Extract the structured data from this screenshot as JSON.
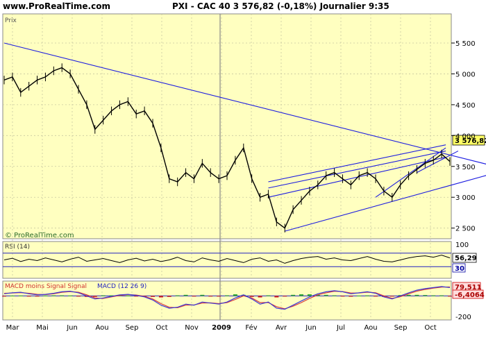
{
  "header": {
    "site": "www.ProRealTime.com",
    "title": "PXI - CAC 40    3 576,82 (-0,18%)    Journalier  9:35"
  },
  "main_panel": {
    "label": "Prix",
    "watermark": "© ProRealTime.com",
    "last_price_tag": "3 576,82"
  },
  "rsi_panel": {
    "label": "RSI (14)",
    "value_tag": "56,29",
    "level_tag": "30"
  },
  "macd_panel": {
    "label_part1": "MACD moins Signal Signal",
    "label_part2": "MACD (12 26 9)",
    "value_tag_1": "79,511",
    "value_tag_2": "-6,4064"
  },
  "colors": {
    "panel_bg": "#ffffc0",
    "price": "#000000",
    "trendline": "#1c1ce0",
    "rsi_line": "#000000",
    "macd_line": "#3a3ad8",
    "signal_line": "#d83a3a",
    "hist_pos": "#2eaa2e",
    "hist_neg": "#d02020",
    "price_tag_bg": "#ffff66",
    "rsi_tag_bg": "#ffffff",
    "macd_tag_bg": "#ffdddd"
  },
  "chart_data": [
    {
      "type": "line",
      "panel": "price",
      "x_tick_labels": [
        "Mar",
        "Mai",
        "Jun",
        "Aou",
        "Sep",
        "Oct",
        "Nov",
        "2009",
        "Fév",
        "Avr",
        "Jun",
        "Jul",
        "Aou",
        "Sep",
        "Oct"
      ],
      "y_ticks": [
        {
          "value": 2500,
          "label": "2 500"
        },
        {
          "value": 3000,
          "label": "3 000"
        },
        {
          "value": 3500,
          "label": "3 500"
        },
        {
          "value": 4000,
          "label": "4 000"
        },
        {
          "value": 4500,
          "label": "4 500"
        },
        {
          "value": 5000,
          "label": "5 000"
        },
        {
          "value": 5500,
          "label": "5 500"
        }
      ],
      "ylim": [
        2350,
        5950
      ],
      "grid": true,
      "series": [
        {
          "values": [
            4900,
            4950,
            4700,
            4800,
            4900,
            4950,
            5050,
            5100,
            5000,
            4750,
            4500,
            4100,
            4250,
            4400,
            4500,
            4550,
            4350,
            4400,
            4200,
            3800,
            3300,
            3250,
            3400,
            3300,
            3550,
            3400,
            3300,
            3350,
            3600,
            3800,
            3300,
            3000,
            3050,
            2600,
            2500,
            2800,
            2950,
            3100,
            3200,
            3350,
            3400,
            3300,
            3200,
            3350,
            3400,
            3300,
            3100,
            3000,
            3200,
            3350,
            3450,
            3550,
            3600,
            3700,
            3580
          ]
        }
      ],
      "trendlines": [
        {
          "from": [
            0,
            5500
          ],
          "to": [
            61,
            3450
          ]
        },
        {
          "from": [
            34,
            2450
          ],
          "to": [
            61,
            3450
          ]
        },
        {
          "from": [
            32,
            3250
          ],
          "to": [
            53.5,
            3850
          ]
        },
        {
          "from": [
            32,
            3000
          ],
          "to": [
            53.5,
            3650
          ]
        },
        {
          "from": [
            32,
            3150
          ],
          "to": [
            53.5,
            3750
          ]
        },
        {
          "from": [
            45,
            3000
          ],
          "to": [
            53.5,
            3800
          ]
        },
        {
          "from": [
            50,
            3400
          ],
          "to": [
            55,
            3750
          ]
        }
      ]
    },
    {
      "type": "line",
      "panel": "rsi",
      "title": "RSI (14)",
      "y_ticks": [
        {
          "value": 100,
          "label": "100"
        }
      ],
      "ylim": [
        0,
        100
      ],
      "levels": [
        30,
        70
      ],
      "series": [
        {
          "name": "RSI (14)",
          "values": [
            50,
            55,
            45,
            52,
            48,
            56,
            50,
            44,
            52,
            58,
            46,
            50,
            54,
            48,
            42,
            50,
            55,
            47,
            52,
            45,
            50,
            58,
            48,
            44,
            56,
            50,
            46,
            54,
            48,
            42,
            52,
            56,
            46,
            50,
            40,
            48,
            54,
            58,
            60,
            52,
            56,
            50,
            48,
            54,
            60,
            52,
            46,
            44,
            50,
            56,
            60,
            62,
            58,
            64,
            56
          ]
        }
      ]
    },
    {
      "type": "line",
      "panel": "macd",
      "title": "MACD (12 26 9)",
      "y_ticks": [
        {
          "value": -200,
          "label": "-200"
        }
      ],
      "ylim": [
        -220,
        130
      ],
      "series": [
        {
          "name": "MACD (12 26 9)",
          "values": [
            20,
            30,
            35,
            20,
            10,
            15,
            25,
            40,
            45,
            30,
            0,
            -30,
            -20,
            -5,
            10,
            15,
            5,
            -10,
            -40,
            -90,
            -120,
            -110,
            -80,
            -90,
            -60,
            -70,
            -80,
            -60,
            -20,
            10,
            -30,
            -80,
            -60,
            -120,
            -130,
            -90,
            -50,
            -10,
            20,
            40,
            50,
            40,
            20,
            30,
            40,
            25,
            -10,
            -30,
            0,
            30,
            55,
            70,
            80,
            90,
            80
          ]
        },
        {
          "name": "Signal",
          "values": [
            25,
            28,
            32,
            25,
            15,
            12,
            20,
            35,
            42,
            35,
            10,
            -20,
            -25,
            -10,
            5,
            12,
            8,
            -5,
            -30,
            -75,
            -110,
            -115,
            -90,
            -88,
            -70,
            -68,
            -75,
            -65,
            -35,
            0,
            -20,
            -65,
            -65,
            -105,
            -125,
            -100,
            -65,
            -25,
            10,
            30,
            45,
            42,
            28,
            28,
            36,
            30,
            0,
            -25,
            -8,
            20,
            45,
            62,
            75,
            85,
            86
          ]
        },
        {
          "name": "MACD moins Signal",
          "values": [
            -5,
            2,
            3,
            -5,
            -5,
            3,
            5,
            5,
            3,
            -5,
            -10,
            -10,
            5,
            5,
            5,
            3,
            -3,
            -5,
            -10,
            -15,
            -10,
            5,
            10,
            -2,
            10,
            -2,
            -5,
            5,
            15,
            10,
            -10,
            -15,
            5,
            -15,
            -5,
            10,
            15,
            15,
            10,
            10,
            5,
            -2,
            -8,
            2,
            4,
            -5,
            -10,
            -5,
            8,
            10,
            10,
            8,
            5,
            5,
            -6
          ]
        }
      ]
    }
  ]
}
